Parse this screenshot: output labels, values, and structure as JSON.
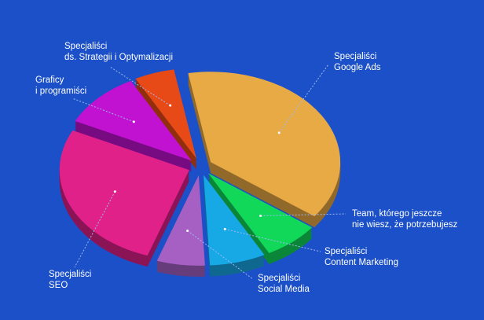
{
  "chart_data": {
    "type": "pie",
    "categories": [
      "Specjaliści\nGoogle Ads",
      "Team, którego jeszcze\nnie wiesz, że potrzebujesz",
      "Specjaliści\nContent Marketing",
      "Specjaliści\nSocial Media",
      "Specjaliści\nSEO",
      "Graficy\ni programiści",
      "Specjaliści\nds. Strategii i Optymalizacji"
    ],
    "values": [
      38,
      7,
      7,
      6,
      27,
      10,
      5
    ],
    "colors": [
      "#e8aa45",
      "#12d85a",
      "#17a8e6",
      "#a660c4",
      "#e0218a",
      "#c012d0",
      "#e84a17"
    ]
  }
}
